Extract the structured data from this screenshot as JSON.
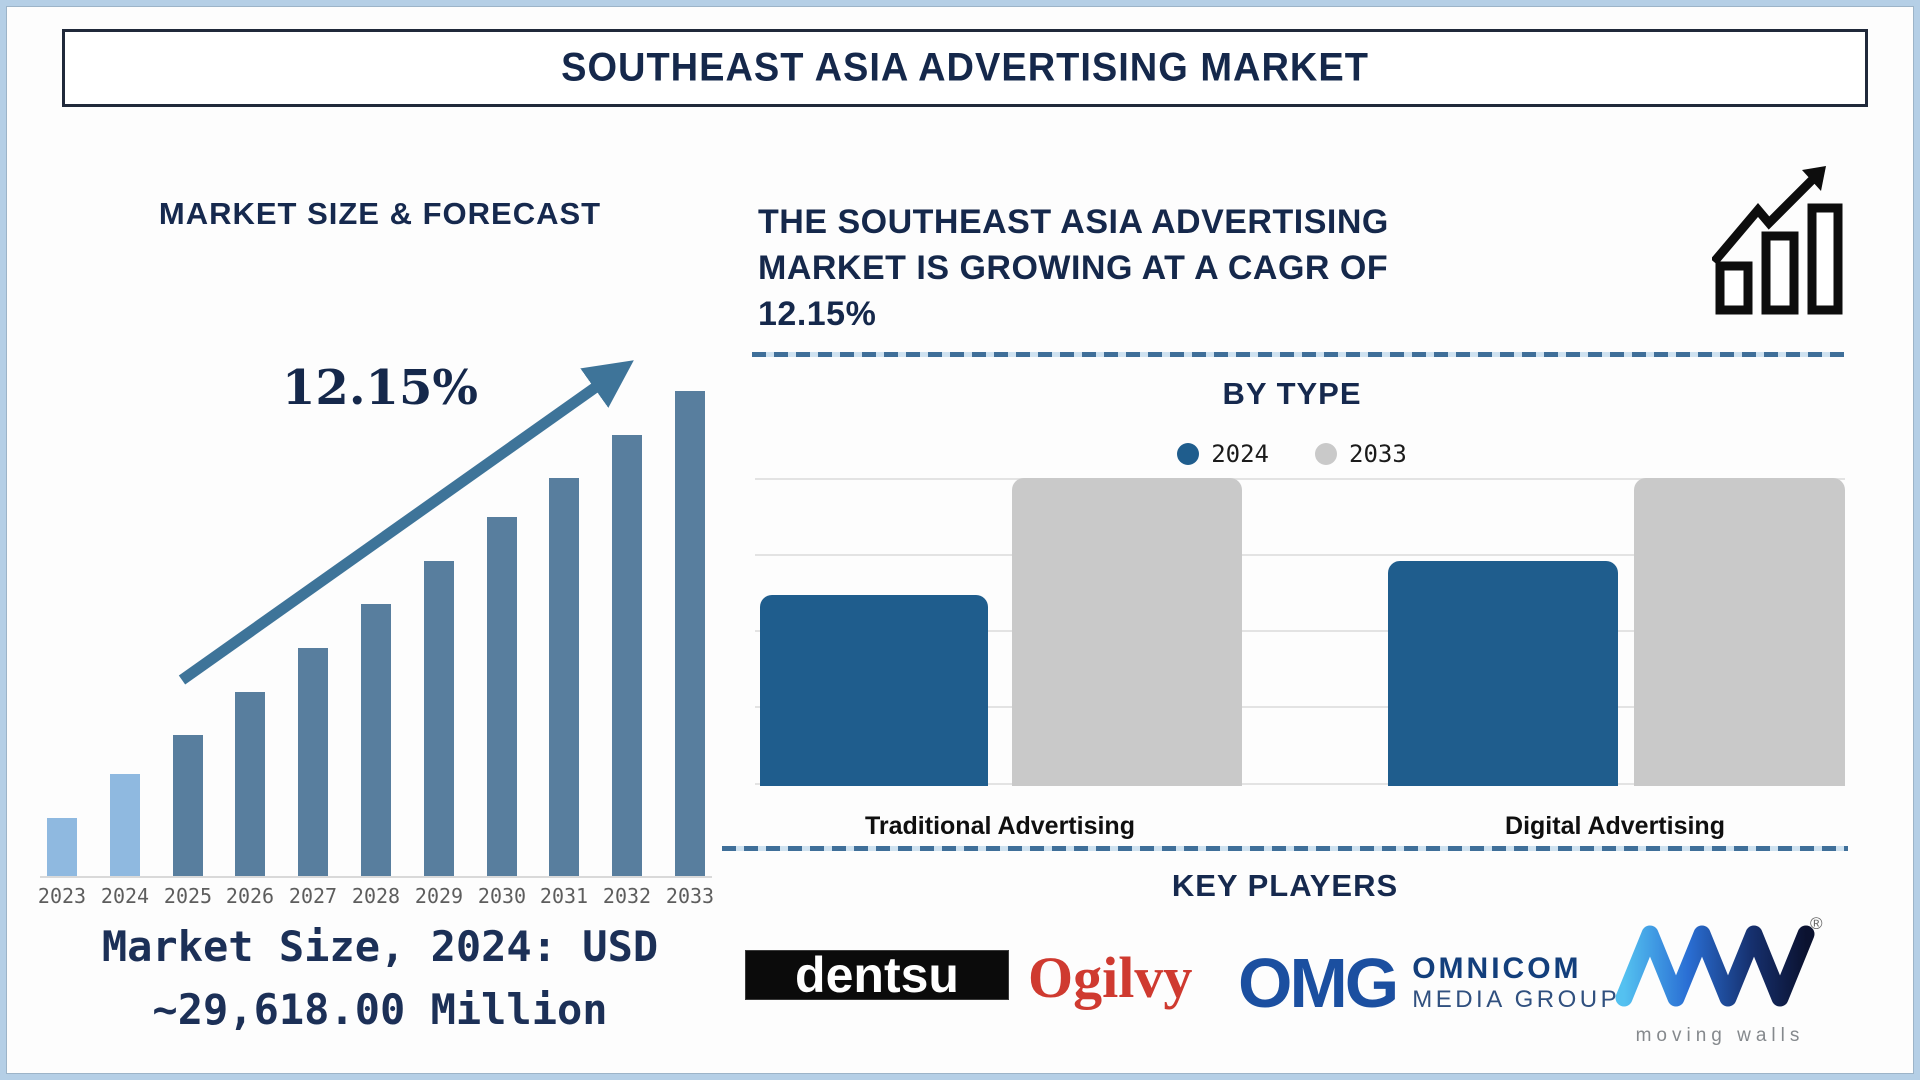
{
  "page": {
    "title": "SOUTHEAST ASIA ADVERTISING MARKET"
  },
  "left": {
    "heading": "MARKET SIZE & FORECAST",
    "cagr_label": "12.15%",
    "caption_line1": "Market Size, 2024: USD",
    "caption_line2": "~29,618.00 Million"
  },
  "right": {
    "growth_statement": "THE SOUTHEAST ASIA ADVERTISING MARKET IS GROWING AT A CAGR OF 12.15%"
  },
  "by_type": {
    "heading": "BY TYPE"
  },
  "key_players": {
    "heading": "KEY PLAYERS",
    "players": [
      {
        "name": "Dentsu",
        "wordmark": "dentsu"
      },
      {
        "name": "Ogilvy",
        "wordmark": "Ogilvy"
      },
      {
        "name": "Omnicom Media Group",
        "wordmark": "OMG",
        "line1": "OMNICOM",
        "line2": "MEDIA GROUP"
      },
      {
        "name": "Moving Walls",
        "wordmark": "MW",
        "tagline": "moving walls",
        "reg": "®"
      }
    ]
  },
  "colors": {
    "navy": "#15284b",
    "arrow": "#3e7499",
    "dash": "#3f6f99",
    "gridline": "#e3e3e3",
    "year_text": "#5d5d5d"
  },
  "chart_data": [
    {
      "type": "bar",
      "title": "MARKET SIZE & FORECAST",
      "categories": [
        "2023",
        "2024",
        "2025",
        "2026",
        "2027",
        "2028",
        "2029",
        "2030",
        "2031",
        "2032",
        "2033"
      ],
      "relative_heights": [
        0.12,
        0.21,
        0.29,
        0.38,
        0.47,
        0.56,
        0.65,
        0.74,
        0.82,
        0.91,
        1.0
      ],
      "unit": "USD Million",
      "history_years": [
        "2023",
        "2024"
      ],
      "history_bar_color": "#8fb9e0",
      "forecast_bar_color": "#587e9e",
      "annotations": {
        "cagr_percent": 12.15,
        "market_size_2024_usd_million": 29618.0
      },
      "ylabel": "",
      "xlabel": "",
      "y_axis_shown": false,
      "trend_arrow": true
    },
    {
      "type": "bar",
      "title": "BY TYPE",
      "categories": [
        "Traditional Advertising",
        "Digital Advertising"
      ],
      "series": [
        {
          "name": "2024",
          "color": "#1f5d8d",
          "relative_heights": [
            0.62,
            0.73
          ]
        },
        {
          "name": "2033",
          "color": "#c9c9c9",
          "relative_heights": [
            1.0,
            1.0
          ]
        }
      ],
      "legend_position": "top",
      "gridlines": true,
      "y_axis_shown": false,
      "note": "bar heights relative to 2033 bars; no numeric axis shown"
    }
  ]
}
